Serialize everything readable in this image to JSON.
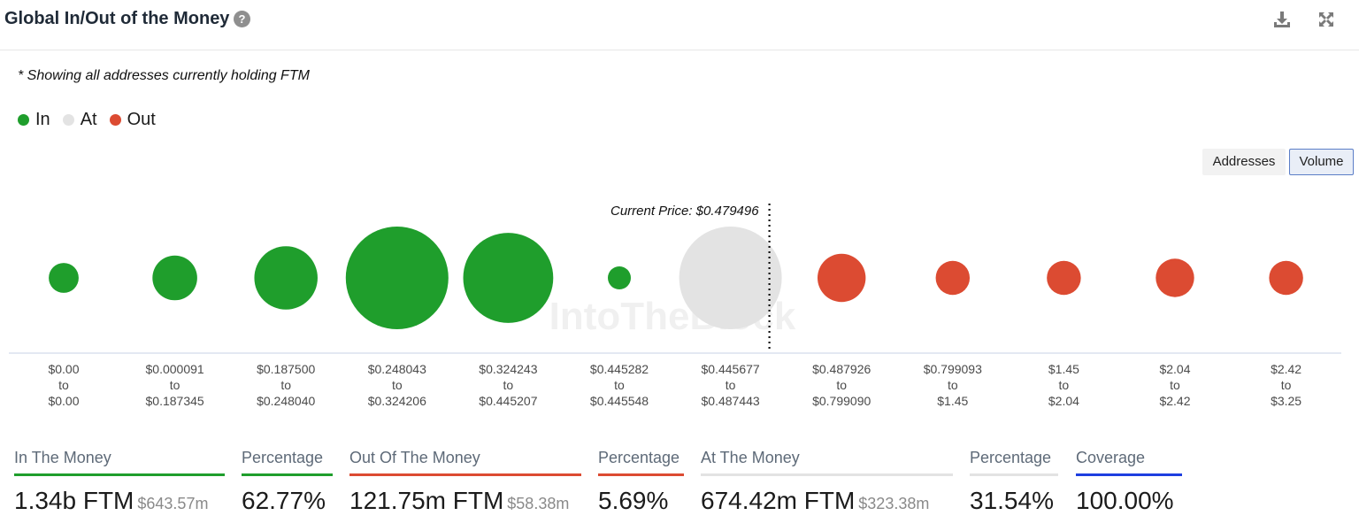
{
  "header": {
    "title": "Global In/Out of the Money",
    "help_icon": "help-icon",
    "help_glyph": "?",
    "download_icon": "download-icon",
    "expand_icon": "expand-icon"
  },
  "note": "* Showing all addresses currently holding FTM",
  "legend": [
    {
      "label": "In",
      "color": "#1f9e2c"
    },
    {
      "label": "At",
      "color": "#e3e3e3"
    },
    {
      "label": "Out",
      "color": "#dc4b32"
    }
  ],
  "toggles": {
    "addresses": "Addresses",
    "volume": "Volume",
    "active": "Volume"
  },
  "colors": {
    "in": "#1f9e2c",
    "at": "#e3e3e3",
    "out": "#dc4b32",
    "coverage": "#1d3ee0",
    "axis": "#c7d0e4"
  },
  "chart_data": {
    "type": "scatter",
    "title": "",
    "current_price_label": "Current Price: $0.479496",
    "current_price": 0.479496,
    "xlabel": "",
    "ylabel": "",
    "watermark": "IntoTheBlock",
    "buckets": [
      {
        "from": "$0.00",
        "to": "$0.00",
        "status": "in",
        "relative_volume": 0.085
      },
      {
        "from": "$0.000091",
        "to": "$0.187345",
        "status": "in",
        "relative_volume": 0.19
      },
      {
        "from": "$0.187500",
        "to": "$0.248040",
        "status": "in",
        "relative_volume": 0.38
      },
      {
        "from": "$0.248043",
        "to": "$0.324206",
        "status": "in",
        "relative_volume": 1.0
      },
      {
        "from": "$0.324243",
        "to": "$0.445207",
        "status": "in",
        "relative_volume": 0.77
      },
      {
        "from": "$0.445282",
        "to": "$0.445548",
        "status": "in",
        "relative_volume": 0.05
      },
      {
        "from": "$0.445677",
        "to": "$0.487443",
        "status": "at",
        "relative_volume": 1.0
      },
      {
        "from": "$0.487926",
        "to": "$0.799090",
        "status": "out",
        "relative_volume": 0.22
      },
      {
        "from": "$0.799093",
        "to": "$1.45",
        "status": "out",
        "relative_volume": 0.11
      },
      {
        "from": "$1.45",
        "to": "$2.04",
        "status": "out",
        "relative_volume": 0.11
      },
      {
        "from": "$2.04",
        "to": "$2.42",
        "status": "out",
        "relative_volume": 0.14
      },
      {
        "from": "$2.42",
        "to": "$3.25",
        "status": "out",
        "relative_volume": 0.11
      }
    ],
    "bucket_connector": "to"
  },
  "stats": [
    {
      "label": "In The Money",
      "value": "1.34b FTM",
      "sub": "$643.57m",
      "color": "#1f9e2c"
    },
    {
      "label": "Percentage",
      "value": "62.77%",
      "sub": "",
      "color": "#1f9e2c"
    },
    {
      "label": "Out Of The Money",
      "value": "121.75m FTM",
      "sub": "$58.38m",
      "color": "#dc4b32"
    },
    {
      "label": "Percentage",
      "value": "5.69%",
      "sub": "",
      "color": "#dc4b32"
    },
    {
      "label": "At The Money",
      "value": "674.42m FTM",
      "sub": "$323.38m",
      "color": "#e3e3e3"
    },
    {
      "label": "Percentage",
      "value": "31.54%",
      "sub": "",
      "color": "#e3e3e3"
    },
    {
      "label": "Coverage",
      "value": "100.00%",
      "sub": "",
      "color": "#1d3ee0"
    }
  ]
}
